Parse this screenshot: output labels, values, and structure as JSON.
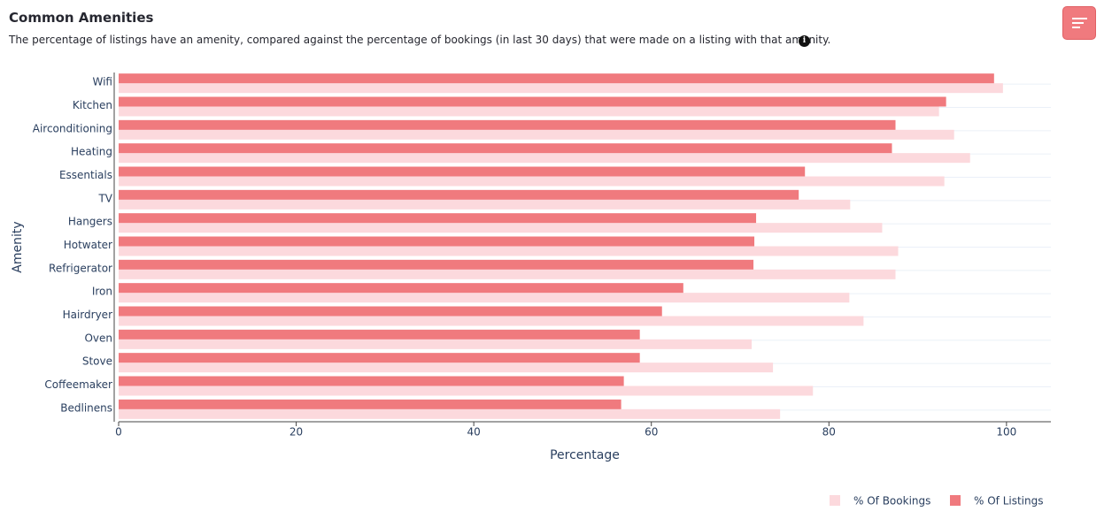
{
  "chart_data": {
    "type": "hbar",
    "title": "Common Amenities",
    "subtitle": "The percentage of listings have an amenity, compared against the percentage of bookings (in last 30 days) that were made on a listing with that amenity.",
    "categories": [
      "Wifi",
      "Kitchen",
      "Airconditioning",
      "Heating",
      "Essentials",
      "TV",
      "Hangers",
      "Hotwater",
      "Refrigerator",
      "Iron",
      "Hairdryer",
      "Oven",
      "Stove",
      "Coffeemaker",
      "Bedlinens"
    ],
    "series": [
      {
        "name": "% Of Bookings",
        "color": "#fcd9dd",
        "values": [
          99.6,
          92.4,
          94.1,
          95.9,
          93.0,
          82.4,
          86.0,
          87.8,
          87.5,
          82.3,
          83.9,
          71.3,
          73.7,
          78.2,
          74.5
        ]
      },
      {
        "name": "% Of Listings",
        "color": "#f07a7e",
        "values": [
          98.6,
          93.2,
          87.5,
          87.1,
          77.3,
          76.6,
          71.8,
          71.6,
          71.5,
          63.6,
          61.2,
          58.7,
          58.7,
          56.9,
          56.6
        ]
      }
    ],
    "x_label": "Percentage",
    "y_label": "Amenity",
    "xlim": [
      0,
      105
    ],
    "xticks": [
      0,
      20,
      40,
      60,
      80,
      100
    ],
    "grid": true
  }
}
